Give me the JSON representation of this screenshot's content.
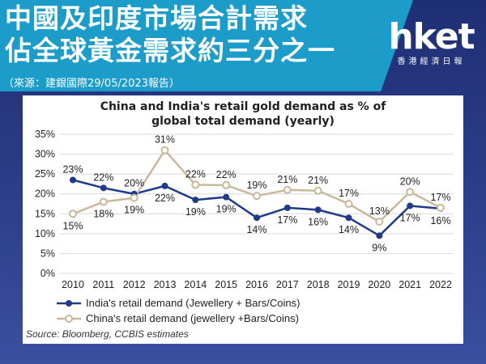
{
  "header": {
    "line1": "中國及印度市場合計需求",
    "line2": "佔全球黃金需求約三分之一",
    "source_note": "（來源：建銀國際29/05/2023報告）"
  },
  "logo": {
    "word": "hket",
    "subtitle": "香港經濟日報"
  },
  "chart_data": {
    "type": "line",
    "title_line1": "China and India's retail gold demand as % of",
    "title_line2": "global total demand (yearly)",
    "categories": [
      "2010",
      "2011",
      "2012",
      "2013",
      "2014",
      "2015",
      "2016",
      "2017",
      "2018",
      "2019",
      "2020",
      "2021",
      "2022"
    ],
    "ylim": [
      0,
      35
    ],
    "yticks": [
      0,
      5,
      10,
      15,
      20,
      25,
      30,
      35
    ],
    "ytick_labels": [
      "0%",
      "5%",
      "10%",
      "15%",
      "20%",
      "25%",
      "30%",
      "35%"
    ],
    "grid": "horizontal",
    "series": [
      {
        "name": "India's retail demand (Jewellery + Bars/Coins)",
        "color": "#1f3b88",
        "values": [
          23.5,
          21.5,
          20,
          22,
          18.5,
          19.2,
          14,
          16.5,
          16,
          14,
          9.5,
          17,
          16.3
        ],
        "labels": [
          "23%",
          "22%",
          "20%",
          "22%",
          "19%",
          "19%",
          "14%",
          "17%",
          "16%",
          "14%",
          "9%",
          "17%",
          "16%"
        ]
      },
      {
        "name": "China's retail demand (jewellery +Bars/Coins)",
        "color": "#c9b99a",
        "values": [
          15,
          18,
          19,
          31,
          22.3,
          22.2,
          19.5,
          21,
          20.8,
          17.5,
          13,
          20.5,
          16.5
        ],
        "labels": [
          "15%",
          "18%",
          "19%",
          "31%",
          "22%",
          "22%",
          "19%",
          "21%",
          "21%",
          "17%",
          "13%",
          "20%",
          "17%"
        ]
      }
    ],
    "source": "Source: Bloomberg, CCBIS estimates"
  }
}
